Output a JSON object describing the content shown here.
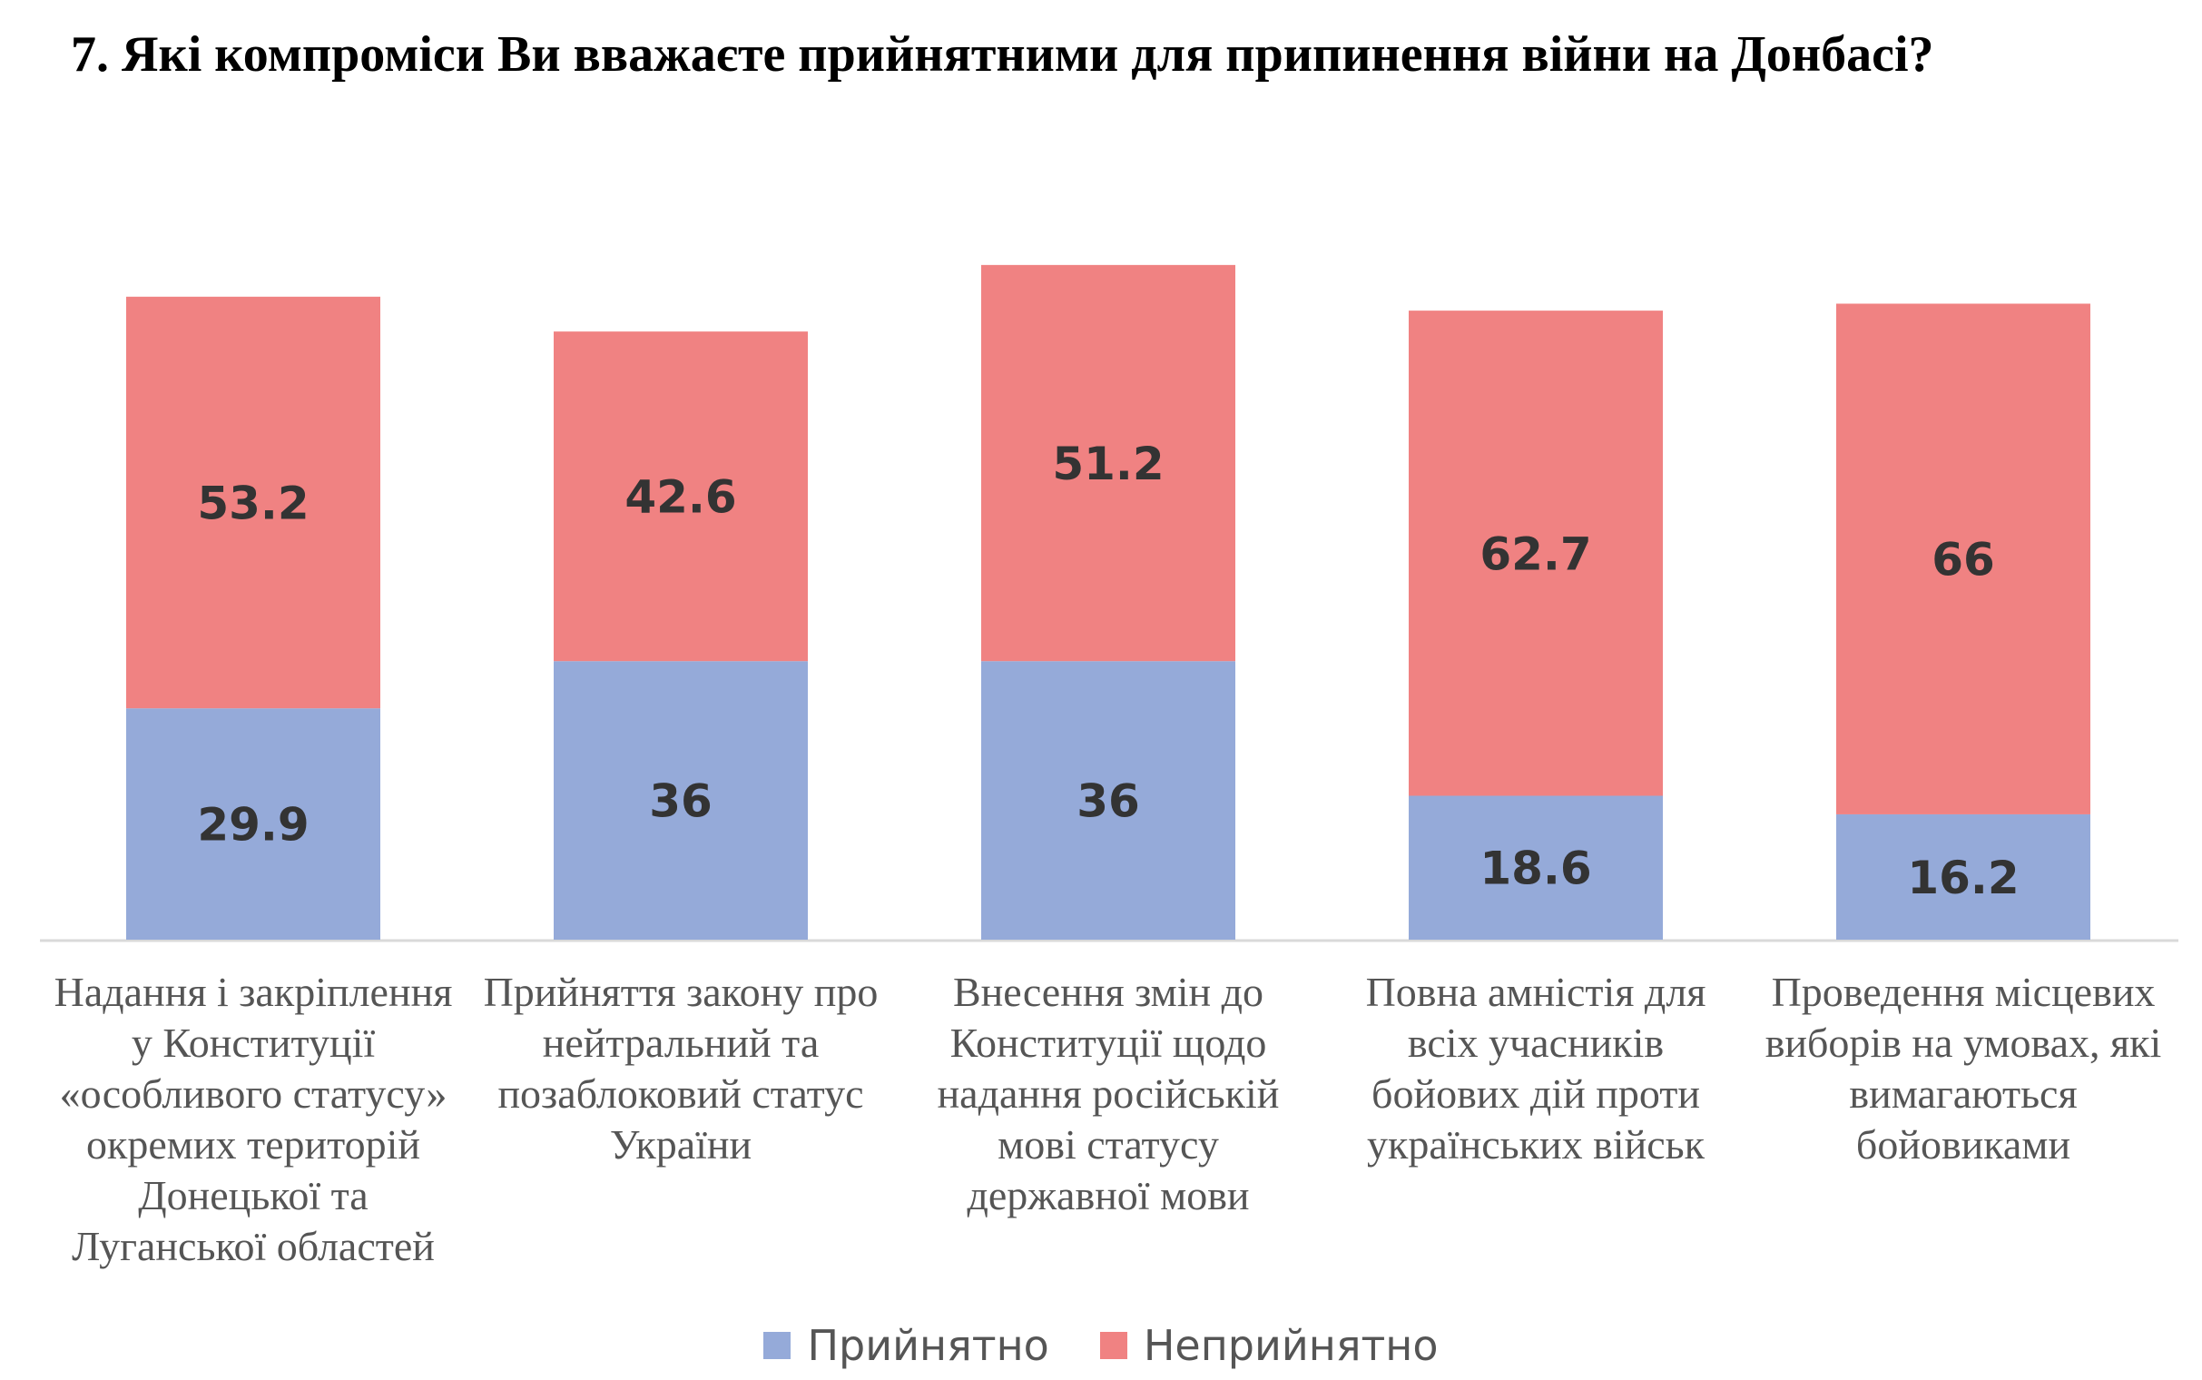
{
  "title": "7.  Які компроміси Ви вважаєте прийнятними для припинення війни на Донбасі?",
  "colors": {
    "accept": "#95AAD9",
    "reject": "#F08282",
    "axis": "#d9d9d9",
    "value_text": "#333333"
  },
  "chart_data": {
    "type": "bar",
    "stacked": true,
    "title": "7.  Які компроміси Ви вважаєте прийнятними для припинення війни на Донбасі?",
    "categories": [
      "Надання і закріплення у Конституції «особливого статусу» окремих територій Донецької та Луганської областей",
      "Прийняття закону про нейтральний та позаблоковий статус України",
      "Внесення змін до Конституції щодо надання російській мові статусу державної мови",
      "Повна амністія для всіх учасників бойових дій проти українських військ",
      "Проведення місцевих виборів на умовах, які вимагаються бойовиками"
    ],
    "series": [
      {
        "name": "Прийнятно",
        "values": [
          29.9,
          36,
          36,
          18.6,
          16.2
        ]
      },
      {
        "name": "Неприйнятно",
        "values": [
          53.2,
          42.6,
          51.2,
          62.7,
          66
        ]
      }
    ],
    "value_labels": [
      [
        "29.9",
        "36",
        "36",
        "18.6",
        "16.2"
      ],
      [
        "53.2",
        "42.6",
        "51.2",
        "62.7",
        "66"
      ]
    ],
    "xlabel": "",
    "ylabel": "",
    "ylim": [
      0,
      90
    ],
    "grid": false,
    "legend_position": "bottom"
  },
  "category_lines": [
    "Надання і закріплення\nу Конституції\n«особливого статусу»\nокремих територій\nДонецької та\nЛуганської областей",
    "Прийняття закону про\nнейтральний та\nпозаблоковий статус\nУкраїни",
    "Внесення змін до\nКонституції щодо\nнадання російській\nмові статусу\nдержавної мови",
    "Повна амністія для\nвсіх учасників\nбойових дій проти\nукраїнських військ",
    "Проведення місцевих\nвиборів на умовах, які\nвимагаються\nбойовиками"
  ],
  "legend": [
    {
      "label": "Прийнятно",
      "color": "#95AAD9"
    },
    {
      "label": "Неприйнятно",
      "color": "#F08282"
    }
  ]
}
